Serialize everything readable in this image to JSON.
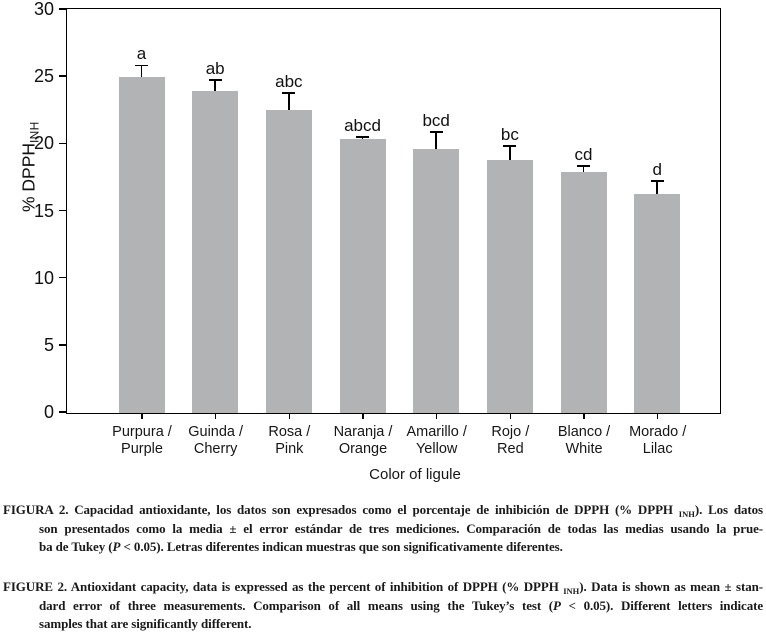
{
  "chart_data": {
    "type": "bar",
    "title": "",
    "xlabel": "Color of ligule",
    "ylabel_main": "% DPPH",
    "ylabel_sub": "INH",
    "ylim": [
      0,
      30
    ],
    "yticks": [
      0,
      5,
      10,
      15,
      20,
      25,
      30
    ],
    "grid": false,
    "legend": null,
    "bar_color": "#b1b3b5",
    "axis_color": "#000000",
    "categories": [
      [
        "Purpura /",
        "Purple"
      ],
      [
        "Guinda /",
        "Cherry"
      ],
      [
        "Rosa /",
        "Pink"
      ],
      [
        "Naranja /",
        "Orange"
      ],
      [
        "Amarillo /",
        "Yellow"
      ],
      [
        "Rojo /",
        "Red"
      ],
      [
        "Blanco /",
        "White"
      ],
      [
        "Morado /",
        "Lilac"
      ]
    ],
    "values": [
      25.0,
      23.9,
      22.5,
      20.35,
      19.6,
      18.8,
      17.9,
      16.3
    ],
    "errors": [
      0.9,
      0.9,
      1.35,
      0.2,
      1.35,
      1.1,
      0.5,
      1.0
    ],
    "sig_letters": [
      "a",
      "ab",
      "abc",
      "abcd",
      "bcd",
      "bc",
      "cd",
      "d"
    ]
  },
  "figure": {
    "captions": {
      "spanish": {
        "label": "FIGURA 2.",
        "lines": [
          {
            "hang": false,
            "justify": true,
            "segments": [
              {
                "t": "FIGURA 2. "
              },
              {
                "t": "Capacidad antioxidante, los datos son expresados como el porcentaje de inhibición de DPPH (% DPPH "
              },
              {
                "t": "INH",
                "style": "sub"
              },
              {
                "t": "). Los datos"
              }
            ]
          },
          {
            "hang": true,
            "justify": true,
            "segments": [
              {
                "t": "son presentados como la media ± el error estándar de tres mediciones. Comparación de todas las medias usando la prue-"
              }
            ]
          },
          {
            "hang": true,
            "justify": false,
            "segments": [
              {
                "t": "ba de Tukey ("
              },
              {
                "t": "P",
                "style": "italic"
              },
              {
                "t": " < 0.05). Letras diferentes indican muestras que son significativamente diferentes."
              }
            ]
          }
        ]
      },
      "english": {
        "label": "FIGURE 2.",
        "lines": [
          {
            "hang": false,
            "justify": true,
            "segments": [
              {
                "t": "FIGURE 2. "
              },
              {
                "t": "Antioxidant capacity, data is expressed as the percent of inhibition of DPPH (% DPPH "
              },
              {
                "t": "INH",
                "style": "sub"
              },
              {
                "t": "). Data is shown as mean ± stan-"
              }
            ]
          },
          {
            "hang": true,
            "justify": true,
            "segments": [
              {
                "t": "dard error of three measurements. Comparison of all means using the Tukey’s test ("
              },
              {
                "t": "P",
                "style": "italic"
              },
              {
                "t": " < 0.05). Different letters indicate"
              }
            ]
          },
          {
            "hang": true,
            "justify": false,
            "segments": [
              {
                "t": "samples that are significantly different."
              }
            ]
          }
        ]
      }
    }
  }
}
